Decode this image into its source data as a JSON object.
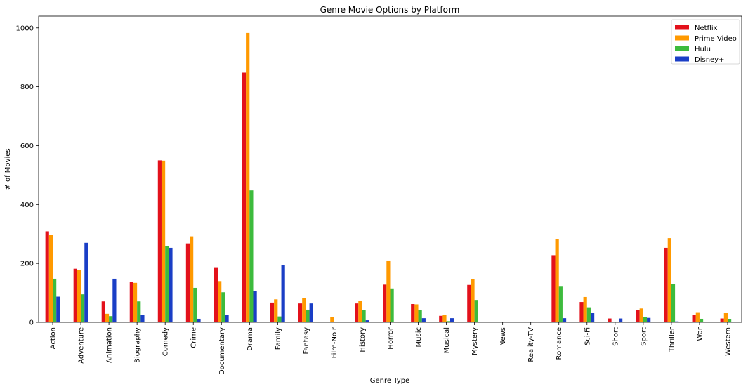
{
  "chart_data": {
    "type": "bar",
    "title": "Genre Movie Options by Platform",
    "xlabel": "Genre Type",
    "ylabel": "# of Movies",
    "ylim": [
      0,
      1040
    ],
    "yticks": [
      0,
      200,
      400,
      600,
      800,
      1000
    ],
    "grid": false,
    "legend_position": "top-right",
    "categories": [
      "Action",
      "Adventure",
      "Animation",
      "Biography",
      "Comedy",
      "Crime",
      "Documentary",
      "Drama",
      "Family",
      "Fantasy",
      "Film-Noir",
      "History",
      "Horror",
      "Music",
      "Musical",
      "Mystery",
      "News",
      "Reality-TV",
      "Romance",
      "Sci-Fi",
      "Short",
      "Sport",
      "Thriller",
      "War",
      "Western"
    ],
    "series": [
      {
        "name": "Netflix",
        "color": "#e3111b",
        "values": [
          309,
          182,
          71,
          137,
          550,
          268,
          187,
          848,
          67,
          64,
          0,
          64,
          128,
          62,
          22,
          127,
          0,
          0,
          228,
          69,
          13,
          41,
          253,
          25,
          13
        ]
      },
      {
        "name": "Prime Video",
        "color": "#ff9900",
        "values": [
          297,
          177,
          29,
          134,
          549,
          292,
          140,
          983,
          78,
          82,
          17,
          74,
          210,
          61,
          24,
          146,
          2,
          0,
          283,
          86,
          0,
          47,
          286,
          32,
          31
        ]
      },
      {
        "name": "Hulu",
        "color": "#3dbb3d",
        "values": [
          148,
          95,
          21,
          71,
          258,
          117,
          102,
          448,
          20,
          43,
          0,
          42,
          115,
          42,
          4,
          76,
          0,
          0,
          121,
          51,
          2,
          19,
          131,
          12,
          11
        ]
      },
      {
        "name": "Disney+",
        "color": "#1a3ec6",
        "values": [
          87,
          270,
          148,
          24,
          253,
          12,
          26,
          107,
          195,
          64,
          0,
          7,
          0,
          14,
          14,
          0,
          0,
          0,
          14,
          31,
          13,
          15,
          3,
          0,
          2
        ]
      }
    ]
  }
}
